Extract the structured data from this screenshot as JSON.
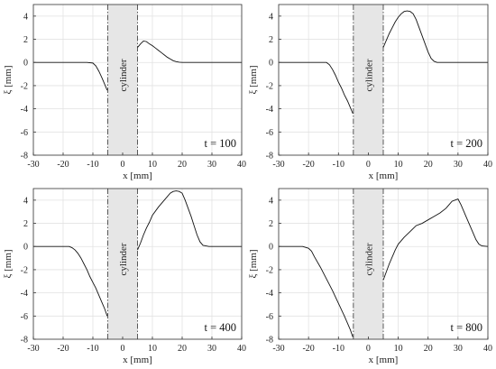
{
  "chart_data": [
    {
      "type": "line",
      "annotation": "t = 100",
      "band_label": "cylinder",
      "xlabel": "x [mm]",
      "ylabel": "ξ [mm]",
      "xlim": [
        -30,
        40
      ],
      "ylim": [
        -8,
        5
      ],
      "xticks": [
        -30,
        -20,
        -10,
        0,
        10,
        20,
        30,
        40
      ],
      "yticks": [
        4,
        2,
        0,
        -2,
        -4,
        -6,
        -8
      ],
      "band": [
        -5,
        5
      ],
      "grid": true,
      "series": [
        {
          "x": [
            -30,
            -12,
            -10,
            -9,
            -8,
            -7,
            -6,
            -5.2
          ],
          "y": [
            0,
            0,
            -0.05,
            -0.3,
            -0.75,
            -1.3,
            -1.9,
            -2.4
          ]
        },
        {
          "x": [
            5,
            6,
            7,
            8,
            9,
            10,
            11,
            12,
            13,
            14,
            15,
            16,
            17,
            18,
            19,
            20,
            40
          ],
          "y": [
            1.3,
            1.6,
            1.85,
            1.8,
            1.6,
            1.45,
            1.25,
            1.05,
            0.85,
            0.65,
            0.45,
            0.3,
            0.15,
            0.07,
            0.02,
            0,
            0
          ]
        }
      ]
    },
    {
      "type": "line",
      "annotation": "t = 200",
      "band_label": "cylinder",
      "xlabel": "x [mm]",
      "ylabel": "ξ [mm]",
      "xlim": [
        -30,
        40
      ],
      "ylim": [
        -8,
        5
      ],
      "xticks": [
        -30,
        -20,
        -10,
        0,
        10,
        20,
        30,
        40
      ],
      "yticks": [
        4,
        2,
        0,
        -2,
        -4,
        -6,
        -8
      ],
      "band": [
        -5,
        5
      ],
      "grid": true,
      "series": [
        {
          "x": [
            -30,
            -14,
            -13,
            -12,
            -11,
            -10,
            -9,
            -8,
            -7,
            -6,
            -5.2
          ],
          "y": [
            0,
            0,
            -0.2,
            -0.6,
            -1.1,
            -1.7,
            -2.2,
            -2.8,
            -3.3,
            -3.9,
            -4.4
          ]
        },
        {
          "x": [
            5,
            6,
            7,
            8,
            9,
            10,
            11,
            12,
            13,
            14,
            15,
            16,
            17,
            18,
            19,
            20,
            21,
            22,
            23,
            40
          ],
          "y": [
            1.3,
            1.9,
            2.5,
            3.0,
            3.5,
            3.9,
            4.2,
            4.4,
            4.45,
            4.4,
            4.2,
            3.7,
            3.0,
            2.3,
            1.6,
            0.9,
            0.35,
            0.1,
            0,
            0
          ]
        }
      ]
    },
    {
      "type": "line",
      "annotation": "t = 400",
      "band_label": "cylinder",
      "xlabel": "x [mm]",
      "ylabel": "ξ [mm]",
      "xlim": [
        -30,
        40
      ],
      "ylim": [
        -8,
        5
      ],
      "xticks": [
        -30,
        -20,
        -10,
        0,
        10,
        20,
        30,
        40
      ],
      "yticks": [
        4,
        2,
        0,
        -2,
        -4,
        -6,
        -8
      ],
      "band": [
        -5,
        5
      ],
      "grid": true,
      "series": [
        {
          "x": [
            -30,
            -18,
            -17,
            -16,
            -15,
            -14,
            -13,
            -12,
            -11,
            -10,
            -9,
            -8,
            -7,
            -6,
            -5.2
          ],
          "y": [
            0,
            0,
            -0.1,
            -0.3,
            -0.6,
            -1.0,
            -1.5,
            -2.0,
            -2.6,
            -3.1,
            -3.6,
            -4.2,
            -4.8,
            -5.4,
            -6.0
          ]
        },
        {
          "x": [
            5,
            6,
            7,
            8,
            9,
            10,
            12,
            14,
            16,
            17,
            18,
            19,
            20,
            21,
            22,
            23,
            24,
            25,
            26,
            27,
            28,
            29,
            40
          ],
          "y": [
            -0.3,
            0.3,
            1.0,
            1.6,
            2.1,
            2.7,
            3.4,
            4.0,
            4.6,
            4.75,
            4.8,
            4.75,
            4.6,
            4.0,
            3.3,
            2.6,
            1.8,
            1.0,
            0.4,
            0.1,
            0.05,
            0,
            0
          ]
        }
      ]
    },
    {
      "type": "line",
      "annotation": "t = 800",
      "band_label": "cylinder",
      "xlabel": "x [mm]",
      "ylabel": "ξ [mm]",
      "xlim": [
        -30,
        40
      ],
      "ylim": [
        -8,
        5
      ],
      "xticks": [
        -30,
        -20,
        -10,
        0,
        10,
        20,
        30,
        40
      ],
      "yticks": [
        4,
        2,
        0,
        -2,
        -4,
        -6,
        -8
      ],
      "band": [
        -5,
        5
      ],
      "grid": true,
      "series": [
        {
          "x": [
            -30,
            -22,
            -20,
            -19,
            -18,
            -16,
            -14,
            -12,
            -10,
            -8,
            -6,
            -5.2
          ],
          "y": [
            0,
            0,
            -0.15,
            -0.4,
            -0.9,
            -1.8,
            -2.8,
            -3.8,
            -4.9,
            -6.0,
            -7.2,
            -7.8
          ]
        },
        {
          "x": [
            5,
            6,
            7,
            8,
            9,
            10,
            12,
            14,
            16,
            18,
            20,
            22,
            24,
            26,
            27,
            28,
            29,
            30,
            31,
            32,
            33,
            34,
            35,
            36,
            37,
            38,
            40
          ],
          "y": [
            -2.9,
            -2.2,
            -1.5,
            -0.9,
            -0.3,
            0.2,
            0.8,
            1.3,
            1.8,
            2.0,
            2.3,
            2.6,
            2.9,
            3.3,
            3.6,
            3.9,
            4.0,
            4.1,
            3.6,
            3.0,
            2.4,
            1.8,
            1.2,
            0.6,
            0.2,
            0.05,
            0
          ]
        }
      ]
    }
  ]
}
